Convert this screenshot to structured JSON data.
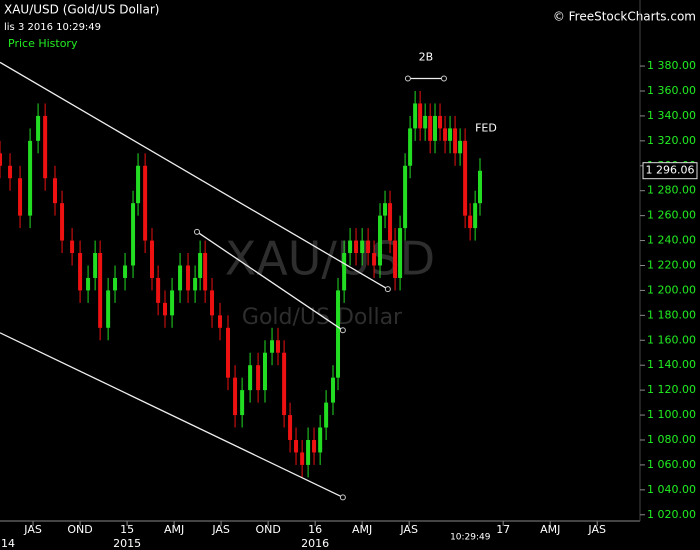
{
  "chart_data": {
    "type": "candlestick",
    "title": "XAU/USD (Gold/US Dollar)",
    "timestamp": "lis 3 2016 10:29:49",
    "panel_label": "Price History",
    "copyright": "© FreeStockCharts.com",
    "watermark": {
      "title": "XAU/USD",
      "subtitle": "Gold/US Dollar"
    },
    "up_color": "#22dd22",
    "down_color": "#ee1111",
    "x": [
      3.89,
      4.53,
      5.17,
      5.81,
      6.32,
      6.77,
      7.4,
      7.85,
      8.49,
      9.0,
      9.51,
      9.96,
      10.28,
      10.79,
      11.23,
      11.87,
      12.38,
      12.7,
      13.15,
      13.59,
      13.98,
      14.42,
      14.87,
      15.38,
      15.89,
      16.34,
      16.66,
      16.98,
      17.42,
      17.93,
      18.44,
      18.89,
      19.34,
      19.85,
      20.36,
      20.8,
      21.25,
      21.63,
      22.02,
      22.4,
      22.78,
      23.17,
      23.55,
      23.93,
      24.32,
      24.7,
      25.14,
      25.46,
      25.85,
      26.23,
      26.61,
      27.0,
      27.38,
      27.76,
      28.14,
      28.46,
      28.78,
      29.1,
      29.42,
      29.74,
      30.06,
      30.38,
      30.7,
      31.02,
      31.34,
      31.65,
      31.97,
      32.29,
      32.61,
      32.93,
      33.25,
      33.57,
      33.89,
      34.21,
      34.52
    ],
    "open": [
      1310,
      1300,
      1290,
      1260,
      1320,
      1340,
      1290,
      1270,
      1240,
      1230,
      1200,
      1210,
      1230,
      1170,
      1200,
      1210,
      1220,
      1270,
      1300,
      1240,
      1210,
      1190,
      1180,
      1200,
      1220,
      1200,
      1210,
      1230,
      1200,
      1180,
      1170,
      1130,
      1100,
      1120,
      1140,
      1120,
      1150,
      1160,
      1150,
      1100,
      1080,
      1070,
      1060,
      1080,
      1070,
      1090,
      1110,
      1130,
      1200,
      1230,
      1240,
      1230,
      1240,
      1230,
      1220,
      1260,
      1270,
      1240,
      1210,
      1250,
      1300,
      1330,
      1350,
      1330,
      1340,
      1320,
      1340,
      1330,
      1320,
      1330,
      1310,
      1320,
      1260,
      1250,
      1270
    ],
    "high": [
      1320,
      1310,
      1300,
      1330,
      1350,
      1350,
      1300,
      1280,
      1250,
      1240,
      1220,
      1240,
      1240,
      1210,
      1220,
      1230,
      1280,
      1310,
      1310,
      1250,
      1220,
      1200,
      1210,
      1230,
      1230,
      1220,
      1240,
      1240,
      1210,
      1190,
      1180,
      1140,
      1130,
      1150,
      1150,
      1160,
      1170,
      1170,
      1160,
      1110,
      1090,
      1080,
      1090,
      1090,
      1100,
      1120,
      1140,
      1210,
      1240,
      1250,
      1250,
      1250,
      1250,
      1240,
      1270,
      1280,
      1280,
      1250,
      1260,
      1310,
      1340,
      1360,
      1360,
      1350,
      1350,
      1350,
      1350,
      1340,
      1340,
      1340,
      1330,
      1330,
      1270,
      1280,
      1306
    ],
    "low": [
      1290,
      1280,
      1250,
      1250,
      1310,
      1280,
      1260,
      1230,
      1220,
      1190,
      1190,
      1200,
      1160,
      1160,
      1190,
      1200,
      1210,
      1260,
      1230,
      1200,
      1180,
      1170,
      1170,
      1190,
      1190,
      1190,
      1200,
      1190,
      1170,
      1160,
      1120,
      1090,
      1090,
      1110,
      1110,
      1110,
      1140,
      1140,
      1090,
      1070,
      1060,
      1050,
      1050,
      1060,
      1060,
      1080,
      1100,
      1120,
      1190,
      1220,
      1220,
      1220,
      1220,
      1210,
      1210,
      1250,
      1230,
      1200,
      1200,
      1240,
      1290,
      1320,
      1320,
      1320,
      1310,
      1310,
      1320,
      1310,
      1310,
      1300,
      1300,
      1250,
      1240,
      1240,
      1260
    ],
    "close": [
      1300,
      1290,
      1260,
      1320,
      1340,
      1290,
      1270,
      1240,
      1230,
      1200,
      1210,
      1230,
      1170,
      1200,
      1210,
      1220,
      1270,
      1300,
      1240,
      1210,
      1190,
      1180,
      1200,
      1220,
      1200,
      1210,
      1230,
      1200,
      1180,
      1170,
      1130,
      1100,
      1120,
      1140,
      1120,
      1150,
      1160,
      1150,
      1100,
      1080,
      1070,
      1060,
      1080,
      1070,
      1090,
      1110,
      1130,
      1200,
      1230,
      1240,
      1230,
      1240,
      1230,
      1220,
      1260,
      1270,
      1240,
      1210,
      1250,
      1300,
      1330,
      1350,
      1330,
      1340,
      1320,
      1340,
      1330,
      1320,
      1330,
      1310,
      1320,
      1260,
      1250,
      1270,
      1296
    ],
    "last_price": {
      "value": 1296.06,
      "label": "1 296.06"
    },
    "xlim": [
      3.89,
      44.73
    ],
    "ylim": [
      1015,
      1433
    ],
    "xticks": [
      {
        "value": 6,
        "label": "JAS"
      },
      {
        "value": 9,
        "label": "OND"
      },
      {
        "value": 12,
        "label": "15"
      },
      {
        "value": 15,
        "label": "AMJ"
      },
      {
        "value": 18,
        "label": "JAS"
      },
      {
        "value": 21,
        "label": "OND"
      },
      {
        "value": 24,
        "label": "16"
      },
      {
        "value": 27,
        "label": "AMJ"
      },
      {
        "value": 30,
        "label": "JAS"
      },
      {
        "value": 36,
        "label": "17"
      },
      {
        "value": 39,
        "label": "AMJ"
      },
      {
        "value": 42,
        "label": "JAS"
      }
    ],
    "year_labels": [
      {
        "value": 4.2,
        "label": "14"
      },
      {
        "value": 12,
        "label": "2015"
      },
      {
        "value": 24,
        "label": "2016"
      }
    ],
    "time_label": {
      "value": 33.9,
      "label": "10:29:49"
    },
    "yticks": [
      {
        "value": 1020,
        "label": "1 020.00"
      },
      {
        "value": 1040,
        "label": "1 040.00"
      },
      {
        "value": 1060,
        "label": "1 060.00"
      },
      {
        "value": 1080,
        "label": "1 080.00"
      },
      {
        "value": 1100,
        "label": "1 100.00"
      },
      {
        "value": 1120,
        "label": "1 120.00"
      },
      {
        "value": 1140,
        "label": "1 140.00"
      },
      {
        "value": 1160,
        "label": "1 160.00"
      },
      {
        "value": 1180,
        "label": "1 180.00"
      },
      {
        "value": 1200,
        "label": "1 200.00"
      },
      {
        "value": 1220,
        "label": "1 220.00"
      },
      {
        "value": 1240,
        "label": "1 240.00"
      },
      {
        "value": 1260,
        "label": "1 260.00"
      },
      {
        "value": 1280,
        "label": "1 280.00"
      },
      {
        "value": 1300,
        "label": "1 300.00"
      },
      {
        "value": 1320,
        "label": "1 320.00"
      },
      {
        "value": 1340,
        "label": "1 340.00"
      },
      {
        "value": 1360,
        "label": "1 360.00"
      },
      {
        "value": 1380,
        "label": "1 380.00"
      }
    ],
    "trend_lines": [
      {
        "x": [
          3.89,
          28.64
        ],
        "y": [
          1383,
          1201
        ]
      },
      {
        "x": [
          16.46,
          25.77
        ],
        "y": [
          1247,
          1168
        ]
      },
      {
        "x": [
          3.89,
          25.77
        ],
        "y": [
          1166,
          1034
        ]
      },
      {
        "x": [
          29.92,
          32.22
        ],
        "y": [
          1370,
          1370
        ]
      }
    ],
    "annotations": [
      {
        "text": "2B",
        "x": 31.07,
        "y": 1387
      },
      {
        "text": "FED",
        "x": 34.9,
        "y": 1330
      }
    ]
  }
}
